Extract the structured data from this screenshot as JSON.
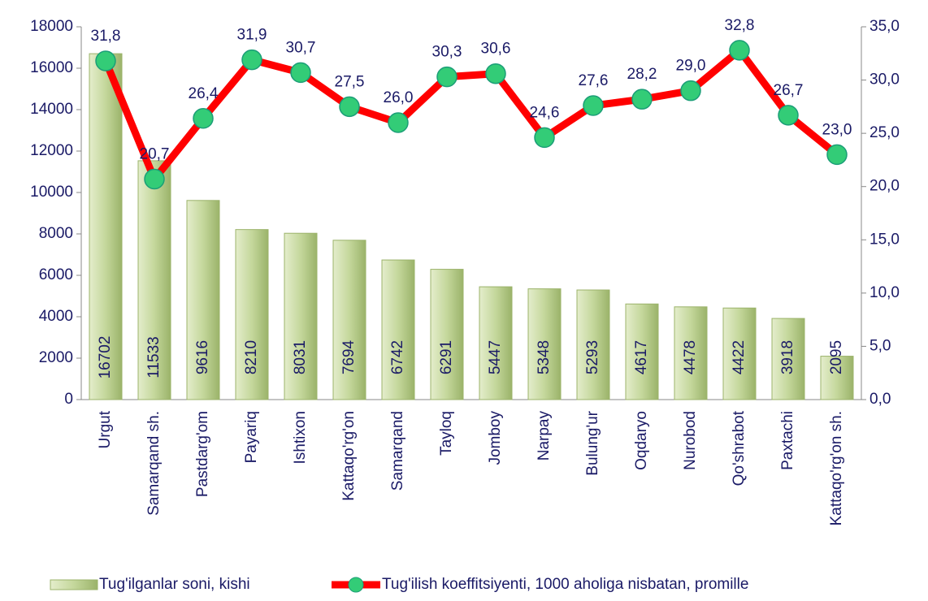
{
  "chart_data": {
    "type": "bar",
    "categories": [
      "Urgut",
      "Samarqand sh.",
      "Pastdarg'om",
      "Payariq",
      "Ishtixon",
      "Kattaqo'rg'on",
      "Samarqand",
      "Tayloq",
      "Jomboy",
      "Narpay",
      "Bulung'ur",
      "Oqdaryo",
      "Nurobod",
      "Qo'shrabot",
      "Paxtachi",
      "Kattaqo'rg'on sh."
    ],
    "series": [
      {
        "name": "Tug'ilganlar soni, kishi",
        "type": "bar",
        "color": "#c4d79b",
        "values": [
          16702,
          11533,
          9616,
          8210,
          8031,
          7694,
          6742,
          6291,
          5447,
          5348,
          5293,
          4617,
          4478,
          4422,
          3918,
          2095
        ]
      },
      {
        "name": "Tug'ilish koeffitsiyenti, 1000 aholiga nisbatan, promille",
        "type": "line",
        "axis": "y2",
        "color": "#ff0000",
        "marker_color": "#33cc77",
        "values": [
          31.8,
          20.7,
          26.4,
          31.9,
          30.7,
          27.5,
          26.0,
          30.3,
          30.6,
          24.6,
          27.6,
          28.2,
          29.0,
          32.8,
          26.7,
          23.0
        ],
        "value_labels": [
          "31,8",
          "20,7",
          "26,4",
          "31,9",
          "30,7",
          "27,5",
          "26,0",
          "30,3",
          "30,6",
          "24,6",
          "27,6",
          "28,2",
          "29,0",
          "32,8",
          "26,7",
          "23,0"
        ]
      }
    ],
    "ylim": [
      0,
      18000
    ],
    "yticks": [
      0,
      2000,
      4000,
      6000,
      8000,
      10000,
      12000,
      14000,
      16000,
      18000
    ],
    "y2lim": [
      0,
      35
    ],
    "y2ticks": [
      {
        "value": 0,
        "label": "0,0"
      },
      {
        "value": 5,
        "label": "5,0"
      },
      {
        "value": 10,
        "label": "10,0"
      },
      {
        "value": 15,
        "label": "15,0"
      },
      {
        "value": 20,
        "label": "20,0"
      },
      {
        "value": 25,
        "label": "25,0"
      },
      {
        "value": 30,
        "label": "30,0"
      },
      {
        "value": 35,
        "label": "35,0"
      }
    ],
    "legend": "bottom"
  }
}
